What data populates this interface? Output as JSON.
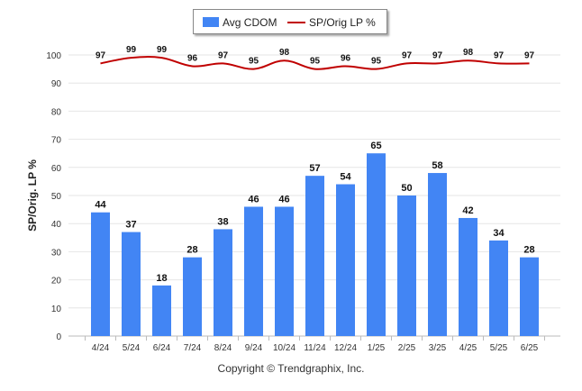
{
  "chart_data": {
    "type": "bar",
    "categories": [
      "4/24",
      "5/24",
      "6/24",
      "7/24",
      "8/24",
      "9/24",
      "10/24",
      "11/24",
      "12/24",
      "1/25",
      "2/25",
      "3/25",
      "4/25",
      "5/25",
      "6/25"
    ],
    "series": [
      {
        "name": "Avg CDOM",
        "kind": "bar",
        "color": "#4285f4",
        "values": [
          44,
          37,
          18,
          28,
          38,
          46,
          46,
          57,
          54,
          65,
          50,
          58,
          42,
          34,
          28
        ]
      },
      {
        "name": "SP/Orig LP %",
        "kind": "line",
        "color": "#c00000",
        "values": [
          97,
          99,
          99,
          96,
          97,
          95,
          98,
          95,
          96,
          95,
          97,
          97,
          98,
          97,
          97
        ]
      }
    ],
    "ylabel": "SP/Orig. LP %",
    "ylim": [
      0,
      100
    ],
    "yticks": [
      "0",
      "10",
      "20",
      "30",
      "40",
      "50",
      "60",
      "70",
      "80",
      "90",
      "100"
    ],
    "grid": true,
    "legend_position": "top-center"
  },
  "legend": {
    "bar_label": "Avg CDOM",
    "line_label": "SP/Orig LP %"
  },
  "footer": {
    "copyright": "Copyright © Trendgraphix, Inc."
  }
}
